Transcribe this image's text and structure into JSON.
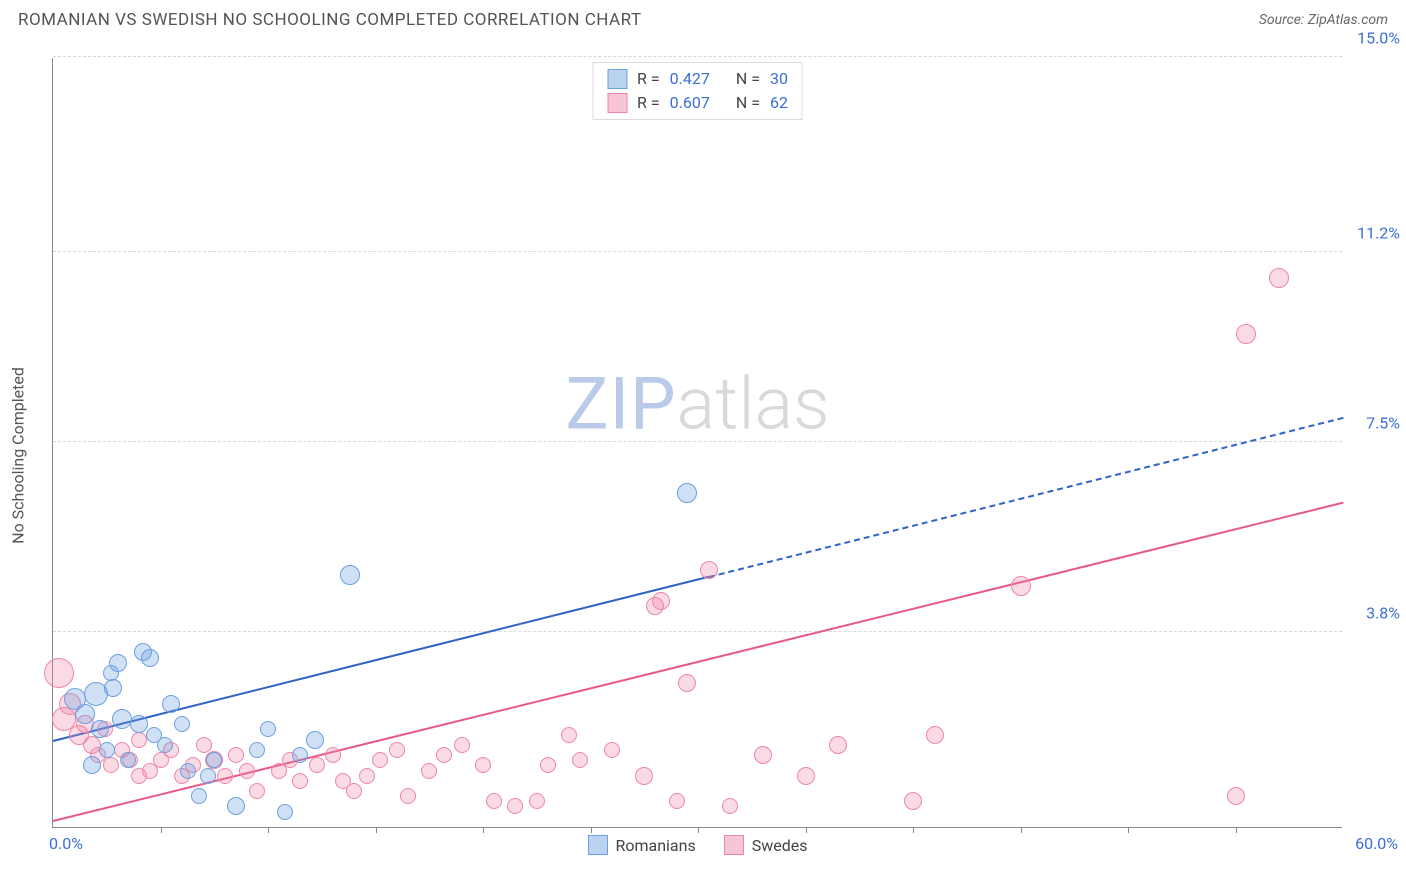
{
  "header": {
    "title": "ROMANIAN VS SWEDISH NO SCHOOLING COMPLETED CORRELATION CHART",
    "source_prefix": "Source: ",
    "source_name": "ZipAtlas.com"
  },
  "ylabel": "No Schooling Completed",
  "watermark": {
    "zip": "ZIP",
    "atlas": "atlas"
  },
  "chart": {
    "type": "scatter",
    "xlim": [
      0,
      60
    ],
    "ylim": [
      0,
      15
    ],
    "yticks": [
      3.8,
      7.5,
      11.2,
      15.0
    ],
    "ytick_labels": [
      "3.8%",
      "7.5%",
      "11.2%",
      "15.0%"
    ],
    "xtick_minor": [
      5,
      10,
      15,
      20,
      25,
      30,
      35,
      40,
      45,
      50,
      55
    ],
    "x_left_label": "0.0%",
    "x_right_label": "60.0%",
    "grid_color": "#d8d8d8",
    "background": "#ffffff",
    "label_color": "#3b6fd6",
    "series": [
      {
        "name": "Romanians",
        "fill": "rgba(108,160,224,0.32)",
        "stroke": "#6ca0e0",
        "line_color": "#2e63c9",
        "swatch_fill": "#bcd3f0",
        "swatch_border": "#6ca0e0",
        "R": "0.427",
        "N": "30",
        "reg_start": [
          0,
          1.65
        ],
        "reg_solid_end": [
          30.5,
          4.85
        ],
        "reg_end": [
          60,
          7.95
        ],
        "points": [
          {
            "x": 1.0,
            "y": 2.5,
            "r": 11
          },
          {
            "x": 1.5,
            "y": 2.2,
            "r": 10
          },
          {
            "x": 1.8,
            "y": 1.2,
            "r": 9
          },
          {
            "x": 2.0,
            "y": 2.6,
            "r": 12
          },
          {
            "x": 2.2,
            "y": 1.9,
            "r": 9
          },
          {
            "x": 2.5,
            "y": 1.5,
            "r": 8
          },
          {
            "x": 2.7,
            "y": 3.0,
            "r": 8
          },
          {
            "x": 3.0,
            "y": 3.2,
            "r": 9
          },
          {
            "x": 3.2,
            "y": 2.1,
            "r": 10
          },
          {
            "x": 3.5,
            "y": 1.3,
            "r": 8
          },
          {
            "x": 4.0,
            "y": 2.0,
            "r": 9
          },
          {
            "x": 4.2,
            "y": 3.4,
            "r": 9
          },
          {
            "x": 4.5,
            "y": 3.3,
            "r": 9
          },
          {
            "x": 4.7,
            "y": 1.8,
            "r": 8
          },
          {
            "x": 5.2,
            "y": 1.6,
            "r": 8
          },
          {
            "x": 5.5,
            "y": 2.4,
            "r": 9
          },
          {
            "x": 6.0,
            "y": 2.0,
            "r": 8
          },
          {
            "x": 6.3,
            "y": 1.1,
            "r": 8
          },
          {
            "x": 6.8,
            "y": 0.6,
            "r": 8
          },
          {
            "x": 7.2,
            "y": 1.0,
            "r": 8
          },
          {
            "x": 7.5,
            "y": 1.3,
            "r": 8
          },
          {
            "x": 8.5,
            "y": 0.4,
            "r": 9
          },
          {
            "x": 9.5,
            "y": 1.5,
            "r": 8
          },
          {
            "x": 10.0,
            "y": 1.9,
            "r": 8
          },
          {
            "x": 10.8,
            "y": 0.3,
            "r": 8
          },
          {
            "x": 11.5,
            "y": 1.4,
            "r": 8
          },
          {
            "x": 12.2,
            "y": 1.7,
            "r": 9
          },
          {
            "x": 13.8,
            "y": 4.9,
            "r": 10
          },
          {
            "x": 29.5,
            "y": 6.5,
            "r": 10
          },
          {
            "x": 2.8,
            "y": 2.7,
            "r": 9
          }
        ]
      },
      {
        "name": "Swedes",
        "fill": "rgba(239,134,166,0.30)",
        "stroke": "#ef86a6",
        "line_color": "#e75a87",
        "swatch_fill": "#f6c6d5",
        "swatch_border": "#ef86a6",
        "R": "0.607",
        "N": "62",
        "reg_start": [
          0,
          0.1
        ],
        "reg_end": [
          60,
          6.3
        ],
        "points": [
          {
            "x": 0.3,
            "y": 3.0,
            "r": 15
          },
          {
            "x": 0.5,
            "y": 2.1,
            "r": 12
          },
          {
            "x": 0.8,
            "y": 2.4,
            "r": 11
          },
          {
            "x": 1.2,
            "y": 1.8,
            "r": 10
          },
          {
            "x": 1.5,
            "y": 2.0,
            "r": 9
          },
          {
            "x": 1.8,
            "y": 1.6,
            "r": 9
          },
          {
            "x": 2.1,
            "y": 1.4,
            "r": 8
          },
          {
            "x": 2.4,
            "y": 1.9,
            "r": 8
          },
          {
            "x": 2.7,
            "y": 1.2,
            "r": 8
          },
          {
            "x": 3.2,
            "y": 1.5,
            "r": 8
          },
          {
            "x": 3.6,
            "y": 1.3,
            "r": 8
          },
          {
            "x": 4.0,
            "y": 1.7,
            "r": 8
          },
          {
            "x": 4.0,
            "y": 1.0,
            "r": 8
          },
          {
            "x": 4.5,
            "y": 1.1,
            "r": 8
          },
          {
            "x": 5.0,
            "y": 1.3,
            "r": 8
          },
          {
            "x": 5.5,
            "y": 1.5,
            "r": 8
          },
          {
            "x": 6.0,
            "y": 1.0,
            "r": 8
          },
          {
            "x": 6.5,
            "y": 1.2,
            "r": 8
          },
          {
            "x": 7.0,
            "y": 1.6,
            "r": 8
          },
          {
            "x": 7.5,
            "y": 1.3,
            "r": 9
          },
          {
            "x": 8.0,
            "y": 1.0,
            "r": 8
          },
          {
            "x": 8.5,
            "y": 1.4,
            "r": 8
          },
          {
            "x": 9.0,
            "y": 1.1,
            "r": 8
          },
          {
            "x": 9.5,
            "y": 0.7,
            "r": 8
          },
          {
            "x": 10.5,
            "y": 1.1,
            "r": 8
          },
          {
            "x": 11.0,
            "y": 1.3,
            "r": 8
          },
          {
            "x": 11.5,
            "y": 0.9,
            "r": 8
          },
          {
            "x": 12.3,
            "y": 1.2,
            "r": 8
          },
          {
            "x": 13.0,
            "y": 1.4,
            "r": 8
          },
          {
            "x": 13.5,
            "y": 0.9,
            "r": 8
          },
          {
            "x": 14.0,
            "y": 0.7,
            "r": 8
          },
          {
            "x": 14.6,
            "y": 1.0,
            "r": 8
          },
          {
            "x": 15.2,
            "y": 1.3,
            "r": 8
          },
          {
            "x": 16.0,
            "y": 1.5,
            "r": 8
          },
          {
            "x": 16.5,
            "y": 0.6,
            "r": 8
          },
          {
            "x": 17.5,
            "y": 1.1,
            "r": 8
          },
          {
            "x": 18.2,
            "y": 1.4,
            "r": 8
          },
          {
            "x": 19.0,
            "y": 1.6,
            "r": 8
          },
          {
            "x": 20.0,
            "y": 1.2,
            "r": 8
          },
          {
            "x": 20.5,
            "y": 0.5,
            "r": 8
          },
          {
            "x": 21.5,
            "y": 0.4,
            "r": 8
          },
          {
            "x": 22.5,
            "y": 0.5,
            "r": 8
          },
          {
            "x": 23.0,
            "y": 1.2,
            "r": 8
          },
          {
            "x": 24.0,
            "y": 1.8,
            "r": 8
          },
          {
            "x": 24.5,
            "y": 1.3,
            "r": 8
          },
          {
            "x": 26.0,
            "y": 1.5,
            "r": 8
          },
          {
            "x": 27.5,
            "y": 1.0,
            "r": 9
          },
          {
            "x": 28.0,
            "y": 4.3,
            "r": 9
          },
          {
            "x": 28.3,
            "y": 4.4,
            "r": 9
          },
          {
            "x": 29.0,
            "y": 0.5,
            "r": 8
          },
          {
            "x": 29.5,
            "y": 2.8,
            "r": 9
          },
          {
            "x": 30.5,
            "y": 5.0,
            "r": 9
          },
          {
            "x": 31.5,
            "y": 0.4,
            "r": 8
          },
          {
            "x": 33.0,
            "y": 1.4,
            "r": 9
          },
          {
            "x": 35.0,
            "y": 1.0,
            "r": 9
          },
          {
            "x": 36.5,
            "y": 1.6,
            "r": 9
          },
          {
            "x": 40.0,
            "y": 0.5,
            "r": 9
          },
          {
            "x": 41.0,
            "y": 1.8,
            "r": 9
          },
          {
            "x": 45.0,
            "y": 4.7,
            "r": 10
          },
          {
            "x": 55.0,
            "y": 0.6,
            "r": 9
          },
          {
            "x": 55.5,
            "y": 9.6,
            "r": 10
          },
          {
            "x": 57.0,
            "y": 10.7,
            "r": 10
          }
        ]
      }
    ],
    "legend_bottom": [
      {
        "label": "Romanians",
        "series": 0
      },
      {
        "label": "Swedes",
        "series": 1
      }
    ]
  }
}
